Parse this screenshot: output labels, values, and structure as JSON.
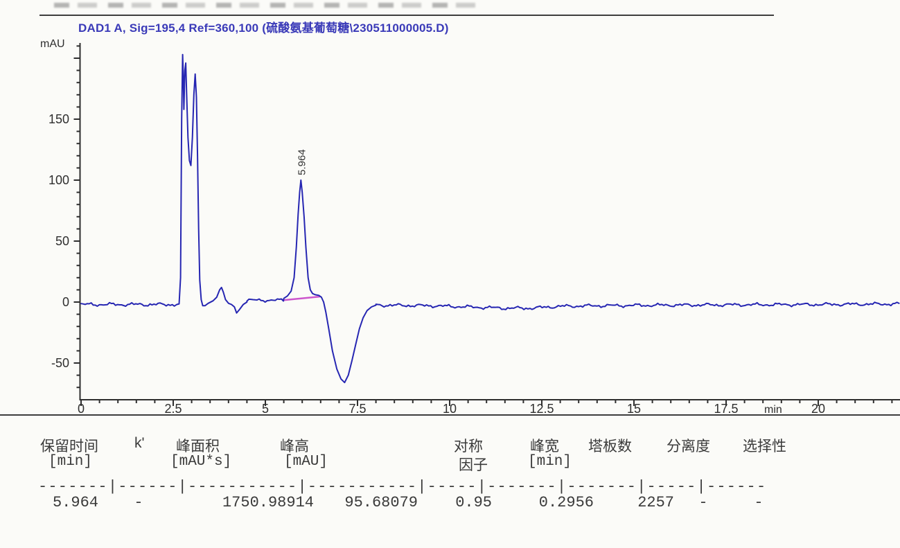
{
  "report": {
    "title": "DAD1 A, Sig=195,4 Ref=360,100 (硫酸氨基葡萄糖\\230511000005.D)"
  },
  "chart_data": {
    "type": "line",
    "title": "DAD1 A, Sig=195,4 Ref=360,100 (硫酸氨基葡萄糖\\230511000005.D)",
    "ylabel": "mAU",
    "xlabel": "min",
    "xlim": [
      0,
      22.2
    ],
    "ylim": [
      -80,
      212
    ],
    "grid": false,
    "x_major_ticks": [
      0,
      2.5,
      5,
      7.5,
      10,
      12.5,
      15,
      17.5,
      20
    ],
    "x_major_labels": [
      "0",
      "2.5",
      "5",
      "7.5",
      "10",
      "12.5",
      "15",
      "17.5",
      "20"
    ],
    "x_minor_step": 0.5,
    "y_major_ticks": [
      -50,
      0,
      50,
      100,
      150,
      200
    ],
    "y_major_labels": [
      "-50",
      "0",
      "50",
      "100",
      "150",
      ""
    ],
    "y_minor_step": 10,
    "trace_color": "#2626b2",
    "integration_color": "#cc55cc",
    "axis_color": "#2e2e2e",
    "peak_annotation": {
      "t": 5.964,
      "label": "5.964"
    },
    "integration_baseline": [
      [
        5.47,
        1.5
      ],
      [
        6.48,
        4.5
      ]
    ],
    "trace_segments": [
      {
        "type": "noise",
        "t0": 0.0,
        "t1": 2.6,
        "base": -2.0,
        "amp": 1.6
      },
      {
        "type": "pts",
        "pts": [
          [
            2.6,
            -2.0
          ],
          [
            2.66,
            -1.5
          ],
          [
            2.7,
            20
          ],
          [
            2.73,
            150
          ],
          [
            2.755,
            203
          ],
          [
            2.775,
            185
          ],
          [
            2.79,
            158
          ],
          [
            2.815,
            190
          ],
          [
            2.84,
            196
          ],
          [
            2.865,
            170
          ],
          [
            2.9,
            135
          ],
          [
            2.94,
            116
          ],
          [
            2.98,
            112
          ],
          [
            3.02,
            135
          ],
          [
            3.06,
            170
          ],
          [
            3.095,
            187
          ],
          [
            3.13,
            168
          ],
          [
            3.16,
            120
          ],
          [
            3.19,
            60
          ],
          [
            3.22,
            18
          ],
          [
            3.26,
            2
          ],
          [
            3.3,
            -3
          ],
          [
            3.36,
            -3
          ],
          [
            3.45,
            -1
          ],
          [
            3.58,
            1
          ],
          [
            3.68,
            4
          ],
          [
            3.76,
            10
          ],
          [
            3.81,
            12
          ],
          [
            3.86,
            8
          ],
          [
            3.92,
            2
          ],
          [
            4.0,
            -1
          ],
          [
            4.08,
            -2
          ],
          [
            4.16,
            -4
          ],
          [
            4.22,
            -9
          ],
          [
            4.3,
            -6
          ],
          [
            4.4,
            -2
          ],
          [
            4.5,
            0
          ]
        ]
      },
      {
        "type": "noise",
        "t0": 4.5,
        "t1": 5.5,
        "base": 1.5,
        "amp": 1.4
      },
      {
        "type": "pts",
        "pts": [
          [
            5.5,
            3
          ],
          [
            5.6,
            5
          ],
          [
            5.7,
            9
          ],
          [
            5.78,
            20
          ],
          [
            5.84,
            45
          ],
          [
            5.89,
            72
          ],
          [
            5.93,
            90
          ],
          [
            5.964,
            100
          ],
          [
            6.0,
            90
          ],
          [
            6.05,
            70
          ],
          [
            6.1,
            45
          ],
          [
            6.16,
            20
          ],
          [
            6.22,
            10
          ],
          [
            6.28,
            7
          ],
          [
            6.35,
            6
          ],
          [
            6.45,
            5.5
          ],
          [
            6.52,
            4
          ],
          [
            6.58,
            0
          ],
          [
            6.64,
            -8
          ],
          [
            6.72,
            -22
          ],
          [
            6.82,
            -40
          ],
          [
            6.94,
            -55
          ],
          [
            7.05,
            -63
          ],
          [
            7.15,
            -66
          ],
          [
            7.25,
            -60
          ],
          [
            7.35,
            -48
          ],
          [
            7.45,
            -35
          ],
          [
            7.55,
            -22
          ],
          [
            7.65,
            -13
          ],
          [
            7.76,
            -7
          ],
          [
            7.88,
            -4
          ],
          [
            8.0,
            -2.5
          ]
        ]
      },
      {
        "type": "noise",
        "t0": 8.0,
        "t1": 22.2,
        "base": -2.5,
        "amp": 1.5,
        "drift": [
          [
            8.0,
            0
          ],
          [
            9.5,
            -0.5
          ],
          [
            10.5,
            -1.5
          ],
          [
            11.5,
            -2.5
          ],
          [
            12.2,
            -2.5
          ],
          [
            13.0,
            -1.0
          ],
          [
            14.0,
            -0.5
          ],
          [
            16.0,
            0
          ],
          [
            18.0,
            0.3
          ],
          [
            20.0,
            0.5
          ],
          [
            22.2,
            1.0
          ]
        ]
      }
    ]
  },
  "peak_table": {
    "headers": [
      "保留时间",
      "k'",
      "峰面积",
      "峰高",
      "对称",
      "峰宽",
      "塔板数",
      "分离度",
      "选择性"
    ],
    "units": [
      "[min]",
      "",
      "[mAU*s]",
      "[mAU]",
      "因子",
      "[min]",
      "",
      "",
      ""
    ],
    "separator": "-------|------|-----------|-----------|-----|-------|-------|-----|------",
    "row": {
      "retention_time": "5.964",
      "k": "-",
      "area": "1750.98914",
      "height": "95.68079",
      "symmetry": "0.95",
      "width": "0.2956",
      "plates": "2257",
      "resolution": "-",
      "selectivity": "-"
    }
  }
}
